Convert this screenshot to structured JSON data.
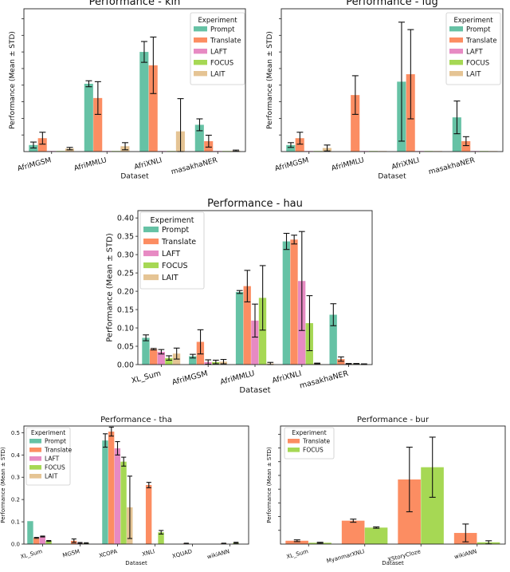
{
  "colors": {
    "Prompt": "#66c2a5",
    "Translate": "#fc8d62",
    "LAFT": "#e78ac3",
    "FOCUS": "#a6d854",
    "LAIT": "#e5c494"
  },
  "chart_data": [
    {
      "type": "bar",
      "title": "Performance - kin",
      "xlabel": "Dataset",
      "ylabel": "Performance (Mean ± STD)",
      "legend_title": "Experiment",
      "legend_position": "top-right",
      "ylim": [
        0,
        0.48
      ],
      "yticks": [],
      "ytick_labels": [],
      "xtick_rotation": -15,
      "categories": [
        "AfriMGSM",
        "AfriMMLU",
        "AfriXNLI",
        "masakhaNER"
      ],
      "series": [
        {
          "name": "Prompt",
          "values": [
            0.022,
            0.228,
            0.335,
            0.09
          ],
          "errors": [
            0.01,
            0.01,
            0.035,
            0.02
          ]
        },
        {
          "name": "Translate",
          "values": [
            0.045,
            0.18,
            0.29,
            0.035
          ],
          "errors": [
            0.02,
            0.055,
            0.095,
            0.02
          ]
        },
        {
          "name": "LAFT",
          "values": [
            0.002,
            0.002,
            0.002,
            0.002
          ],
          "errors": [
            0,
            0,
            0,
            0
          ]
        },
        {
          "name": "FOCUS",
          "values": [
            0.002,
            0.002,
            0.002,
            0.002
          ],
          "errors": [
            0,
            0,
            0,
            0
          ]
        },
        {
          "name": "LAIT",
          "values": [
            0.01,
            0.018,
            0.068,
            0.003
          ],
          "errors": [
            0.004,
            0.012,
            0.11,
            0.002
          ]
        }
      ]
    },
    {
      "type": "bar",
      "title": "Performance - lug",
      "xlabel": "Dataset",
      "ylabel": "Performance (Mean ± STD)",
      "legend_title": "Experiment",
      "legend_position": "top-right",
      "ylim": [
        0,
        0.48
      ],
      "yticks": [],
      "ytick_labels": [],
      "xtick_rotation": -15,
      "categories": [
        "AfriMGSM",
        "AfriMMLU",
        "AfriXNLI",
        "masakhaNER"
      ],
      "series": [
        {
          "name": "Prompt",
          "values": [
            0.022,
            0.0,
            0.235,
            0.115
          ],
          "errors": [
            0.008,
            0,
            0.2,
            0.055
          ]
        },
        {
          "name": "Translate",
          "values": [
            0.045,
            0.19,
            0.26,
            0.035
          ],
          "errors": [
            0.02,
            0.065,
            0.15,
            0.015
          ]
        },
        {
          "name": "LAFT",
          "values": [
            0.002,
            0.002,
            0.002,
            0.002
          ],
          "errors": [
            0,
            0,
            0,
            0
          ]
        },
        {
          "name": "FOCUS",
          "values": [
            0.002,
            0.002,
            0.002,
            0.002
          ],
          "errors": [
            0,
            0,
            0,
            0
          ]
        },
        {
          "name": "LAIT",
          "values": [
            0.012,
            0.002,
            0.002,
            0.002
          ],
          "errors": [
            0.01,
            0,
            0,
            0
          ]
        }
      ]
    },
    {
      "type": "bar",
      "title": "Performance - hau",
      "xlabel": "Dataset",
      "ylabel": "Performance (Mean ± STD)",
      "legend_title": "Experiment",
      "legend_position": "top-left",
      "ylim": [
        0,
        0.42
      ],
      "yticks": [
        0.0,
        0.05,
        0.1,
        0.15,
        0.2,
        0.25,
        0.3,
        0.35,
        0.4
      ],
      "ytick_labels": [
        "0.00",
        "0.05",
        "0.10",
        "0.15",
        "0.20",
        "0.25",
        "0.30",
        "0.35",
        "0.40"
      ],
      "xtick_rotation": -15,
      "categories": [
        "XL_Sum",
        "AfriMGSM",
        "AfriMMLU",
        "AfriXNLI",
        "masakhaNER"
      ],
      "series": [
        {
          "name": "Prompt",
          "values": [
            0.073,
            0.023,
            0.198,
            0.336,
            0.136
          ],
          "errors": [
            0.008,
            0.005,
            0.004,
            0.022,
            0.03
          ]
        },
        {
          "name": "Translate",
          "values": [
            0.042,
            0.062,
            0.214,
            0.341,
            0.015
          ],
          "errors": [
            0.002,
            0.033,
            0.043,
            0.012,
            0.006
          ]
        },
        {
          "name": "LAFT",
          "values": [
            0.035,
            0.007,
            0.12,
            0.228,
            0.002
          ],
          "errors": [
            0.006,
            0.006,
            0.045,
            0.135,
            0.001
          ]
        },
        {
          "name": "FOCUS",
          "values": [
            0.018,
            0.007,
            0.182,
            0.113,
            0.002
          ],
          "errors": [
            0.006,
            0.005,
            0.088,
            0.075,
            0.001
          ]
        },
        {
          "name": "LAIT",
          "values": [
            0.03,
            0.008,
            0.003,
            0.003,
            0.001
          ],
          "errors": [
            0.015,
            0.006,
            0.003,
            0.001,
            0.001
          ]
        }
      ]
    },
    {
      "type": "bar",
      "title": "Performance - tha",
      "xlabel": "Dataset",
      "ylabel": "Performance (Mean ± STD)",
      "legend_title": "Experiment",
      "legend_position": "top-left",
      "ylim": [
        0,
        0.53
      ],
      "yticks": [
        0.0,
        0.1,
        0.2,
        0.3,
        0.4,
        0.5
      ],
      "ytick_labels": [
        "0.0",
        "0.1",
        "0.2",
        "0.3",
        "0.4",
        "0.5"
      ],
      "xtick_rotation": -15,
      "categories": [
        "XL_Sum",
        "MGSM",
        "XCOPA",
        "XNLI",
        "XQUAD",
        "wikiANN"
      ],
      "series": [
        {
          "name": "Prompt",
          "values": [
            0.103,
            0.0,
            0.465,
            0.0,
            0.0,
            0.0
          ],
          "errors": [
            0,
            0,
            0.03,
            0,
            0,
            0
          ]
        },
        {
          "name": "Translate",
          "values": [
            0.028,
            0.015,
            0.505,
            0.265,
            0.003,
            0.003
          ],
          "errors": [
            0.002,
            0.008,
            0.02,
            0.012,
            0.001,
            0.001
          ]
        },
        {
          "name": "LAFT",
          "values": [
            0.034,
            0.005,
            0.43,
            0.0,
            0.0,
            0.0
          ],
          "errors": [
            0.002,
            0.002,
            0.03,
            0,
            0,
            0
          ]
        },
        {
          "name": "FOCUS",
          "values": [
            0.014,
            0.004,
            0.37,
            0.053,
            0.0,
            0.006
          ],
          "errors": [
            0.002,
            0.002,
            0.02,
            0.008,
            0,
            0.002
          ]
        },
        {
          "name": "LAIT",
          "values": [
            0.0,
            0.0,
            0.165,
            0.0,
            0.0,
            0.0
          ],
          "errors": [
            0,
            0,
            0.14,
            0,
            0,
            0
          ]
        }
      ]
    },
    {
      "type": "bar",
      "title": "Performance - bur",
      "xlabel": "Dataset",
      "ylabel": "Performance (Mean ± STD)",
      "legend_title": "Experiment",
      "legend_position": "top-left",
      "ylim": [
        0,
        0.53
      ],
      "yticks": [],
      "ytick_labels": [],
      "xtick_rotation": -15,
      "categories": [
        "XL_Sum",
        "MyanmarXNLI",
        "XStoryCloze",
        "wikiANN"
      ],
      "series": [
        {
          "name": "Translate",
          "values": [
            0.015,
            0.105,
            0.29,
            0.05
          ],
          "errors": [
            0.004,
            0.007,
            0.145,
            0.04
          ]
        },
        {
          "name": "FOCUS",
          "values": [
            0.006,
            0.074,
            0.345,
            0.008
          ],
          "errors": [
            0.002,
            0.003,
            0.135,
            0.007
          ]
        }
      ]
    }
  ]
}
